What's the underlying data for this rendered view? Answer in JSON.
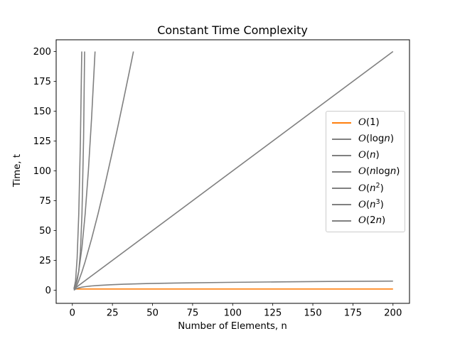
{
  "chart_data": {
    "type": "line",
    "title": "Constant Time Complexity",
    "xlabel": "Number of Elements, n",
    "ylabel": "Time, t",
    "xlim": [
      -10.1,
      210.3
    ],
    "ylim": [
      -11,
      209.8
    ],
    "x_ticks": [
      0,
      25,
      50,
      75,
      100,
      125,
      150,
      175,
      200
    ],
    "y_ticks": [
      0,
      25,
      50,
      75,
      100,
      125,
      150,
      175,
      200
    ],
    "grid": false,
    "legend_position": "center right",
    "series": [
      {
        "name": "O(1)",
        "color": "#ff7f0e",
        "points": [
          [
            1,
            1
          ],
          [
            200,
            1
          ]
        ]
      },
      {
        "name": "O(log n)",
        "color": "#808080",
        "points": [
          [
            1,
            0
          ],
          [
            2,
            1
          ],
          [
            3,
            1.58
          ],
          [
            4,
            2
          ],
          [
            6,
            2.58
          ],
          [
            8,
            3
          ],
          [
            12,
            3.58
          ],
          [
            16,
            4
          ],
          [
            24,
            4.58
          ],
          [
            32,
            5
          ],
          [
            48,
            5.58
          ],
          [
            64,
            6
          ],
          [
            96,
            6.58
          ],
          [
            128,
            7
          ],
          [
            160,
            7.32
          ],
          [
            200,
            7.64
          ]
        ]
      },
      {
        "name": "O(n)",
        "color": "#808080",
        "points": [
          [
            1,
            1
          ],
          [
            200,
            200
          ]
        ]
      },
      {
        "name": "O(n log n)",
        "color": "#808080",
        "points": [
          [
            1,
            0
          ],
          [
            2,
            2
          ],
          [
            3,
            4.75
          ],
          [
            4,
            8
          ],
          [
            6,
            15.5
          ],
          [
            8,
            24
          ],
          [
            12,
            43
          ],
          [
            16,
            64
          ],
          [
            20,
            86.4
          ],
          [
            24,
            110.3
          ],
          [
            28,
            134.6
          ],
          [
            32,
            160
          ],
          [
            36,
            186.2
          ],
          [
            38.1,
            200
          ]
        ]
      },
      {
        "name": "O(n^2)",
        "color": "#808080",
        "points": [
          [
            1,
            1
          ],
          [
            2,
            4
          ],
          [
            4,
            16
          ],
          [
            6,
            36
          ],
          [
            8,
            64
          ],
          [
            10,
            100
          ],
          [
            12,
            144
          ],
          [
            14.14,
            200
          ]
        ]
      },
      {
        "name": "O(n^3)",
        "color": "#808080",
        "points": [
          [
            1,
            1
          ],
          [
            2,
            8
          ],
          [
            3,
            27
          ],
          [
            4,
            64
          ],
          [
            5,
            125
          ],
          [
            5.85,
            200
          ]
        ]
      },
      {
        "name": "O(2n)",
        "color": "#808080",
        "points": [
          [
            1,
            2
          ],
          [
            2,
            4
          ],
          [
            3,
            8
          ],
          [
            4,
            16
          ],
          [
            5,
            32
          ],
          [
            6,
            64
          ],
          [
            7,
            128
          ],
          [
            7.64,
            200
          ]
        ]
      }
    ]
  },
  "legend": {
    "items": [
      {
        "label": "O(1)",
        "color": "#ff7f0e",
        "segments": [
          [
            "O",
            "cal"
          ],
          [
            "(1)",
            "up"
          ]
        ]
      },
      {
        "label": "O(log n)",
        "color": "#808080",
        "segments": [
          [
            "O",
            "cal"
          ],
          [
            "(log",
            "up"
          ],
          [
            "n",
            "it"
          ],
          [
            ")",
            "up"
          ]
        ]
      },
      {
        "label": "O(n)",
        "color": "#808080",
        "segments": [
          [
            "O",
            "cal"
          ],
          [
            "(",
            "up"
          ],
          [
            "n",
            "it"
          ],
          [
            ")",
            "up"
          ]
        ]
      },
      {
        "label": "O(n log n)",
        "color": "#808080",
        "segments": [
          [
            "O",
            "cal"
          ],
          [
            "(",
            "up"
          ],
          [
            "n",
            "it"
          ],
          [
            "log",
            "up"
          ],
          [
            "n",
            "it"
          ],
          [
            ")",
            "up"
          ]
        ]
      },
      {
        "label": "O(n^2)",
        "color": "#808080",
        "segments": [
          [
            "O",
            "cal"
          ],
          [
            "(",
            "up"
          ],
          [
            "n",
            "it"
          ],
          [
            "2",
            "sup"
          ],
          [
            ")",
            "up"
          ]
        ]
      },
      {
        "label": "O(n^3)",
        "color": "#808080",
        "segments": [
          [
            "O",
            "cal"
          ],
          [
            "(",
            "up"
          ],
          [
            "n",
            "it"
          ],
          [
            "3",
            "sup"
          ],
          [
            ")",
            "up"
          ]
        ]
      },
      {
        "label": "O(2n)",
        "color": "#808080",
        "segments": [
          [
            "O",
            "cal"
          ],
          [
            "(2",
            "up"
          ],
          [
            "n",
            "it"
          ],
          [
            ")",
            "up"
          ]
        ]
      }
    ]
  },
  "colors": {
    "accent_orange": "#ff7f0e",
    "line_gray": "#808080",
    "spine": "#000000",
    "legend_border": "#cccccc",
    "background": "#ffffff"
  }
}
